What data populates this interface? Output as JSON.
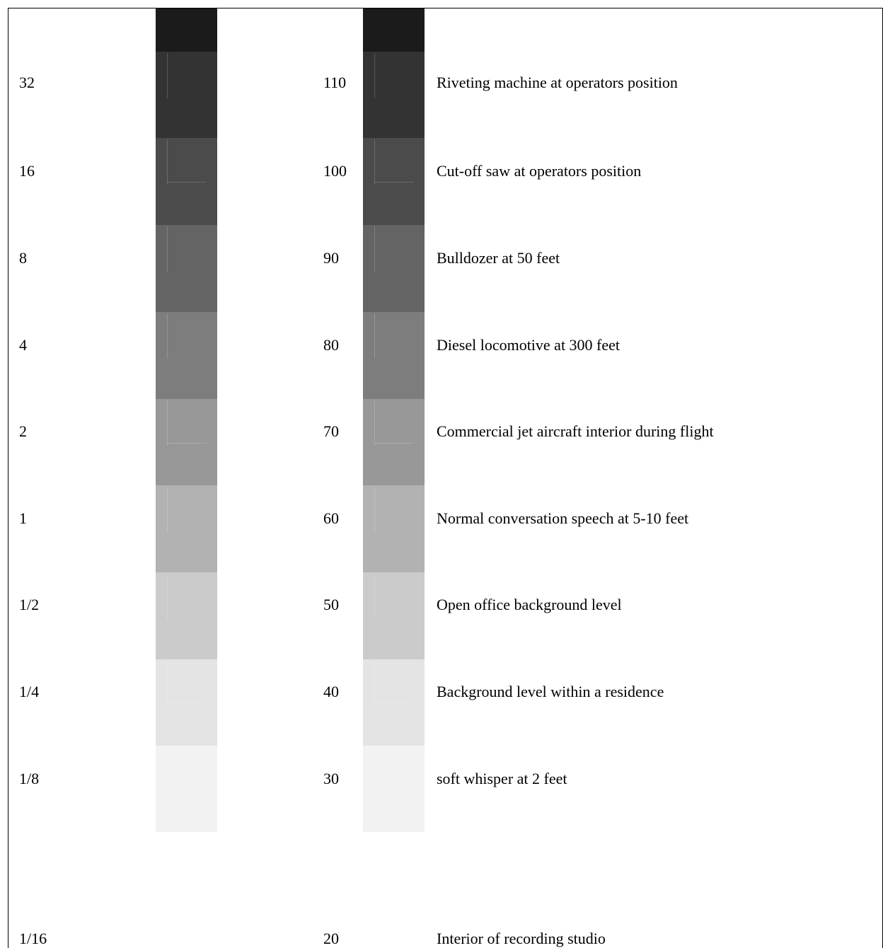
{
  "levels": [
    {
      "ratio": "",
      "db": "",
      "label": "",
      "shade": "#1b1b1b"
    },
    {
      "ratio": "32",
      "db": "110",
      "label": "Riveting machine at operators position",
      "shade": "#333333"
    },
    {
      "ratio": "16",
      "db": "100",
      "label": "Cut-off saw at operators position",
      "shade": "#4b4b4b"
    },
    {
      "ratio": "8",
      "db": "90",
      "label": "Bulldozer at 50 feet",
      "shade": "#646464"
    },
    {
      "ratio": "4",
      "db": "80",
      "label": "Diesel locomotive at 300 feet",
      "shade": "#7d7d7d"
    },
    {
      "ratio": "2",
      "db": "70",
      "label": "Commercial jet aircraft interior during flight",
      "shade": "#989898"
    },
    {
      "ratio": "1",
      "db": "60",
      "label": "Normal conversation speech at 5-10 feet",
      "shade": "#b2b2b2"
    },
    {
      "ratio": "1/2",
      "db": "50",
      "label": "Open office background level",
      "shade": "#cbcbcb"
    },
    {
      "ratio": "1/4",
      "db": "40",
      "label": "Background level within a residence",
      "shade": "#e4e4e4"
    },
    {
      "ratio": "1/8",
      "db": "30",
      "label": "soft whisper at 2 feet",
      "shade": "#f2f2f2"
    },
    {
      "ratio": "1/16",
      "db": "20",
      "label": "Interior of recording studio",
      "shade": ""
    }
  ],
  "colors": {
    "text": "#000000",
    "background": "#ffffff",
    "frame": "#000000"
  }
}
